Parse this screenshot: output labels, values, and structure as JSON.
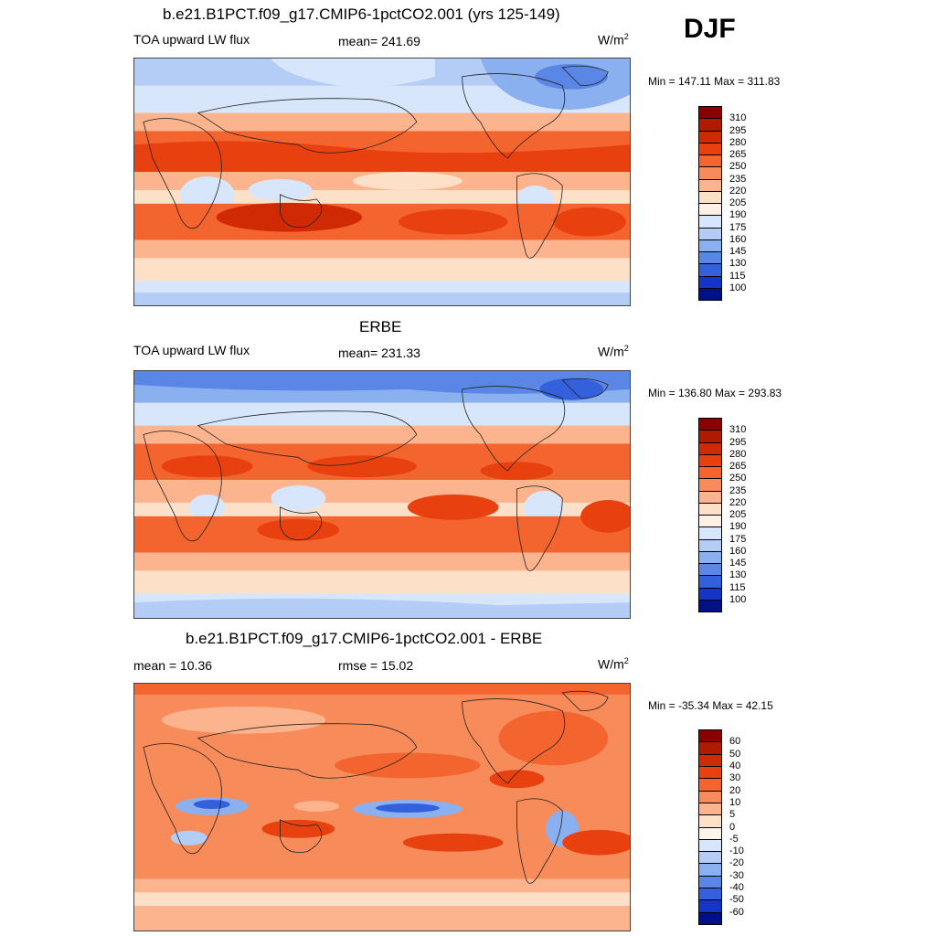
{
  "season": "DJF",
  "panels": [
    {
      "title": "b.e21.B1PCT.f09_g17.CMIP6-1pctCO2.001 (yrs 125-149)",
      "left": "TOA upward LW flux",
      "center": "mean= 241.69",
      "units": "W/m",
      "units_sup": "2",
      "minmax": "Min = 147.11 Max = 311.83",
      "colorbar": {
        "labels": [
          "310",
          "295",
          "280",
          "265",
          "250",
          "235",
          "220",
          "205",
          "190",
          "175",
          "160",
          "145",
          "130",
          "115",
          "100"
        ],
        "colors": [
          "#8b0000",
          "#b01a00",
          "#d02a05",
          "#e8400e",
          "#f4642e",
          "#f88b5a",
          "#fcb48e",
          "#fde0c8",
          "#fdf0e4",
          "#d8e6fb",
          "#b3cdf6",
          "#8bb0ef",
          "#5a87e6",
          "#3560dc",
          "#1534c8",
          "#00108a"
        ]
      },
      "field_summary": {
        "min": 147.11,
        "max": 311.83,
        "mean": 241.69
      }
    },
    {
      "title": "ERBE",
      "left": "TOA upward LW flux",
      "center": "mean= 231.33",
      "units": "W/m",
      "units_sup": "2",
      "minmax": "Min = 136.80 Max = 293.83",
      "colorbar": {
        "labels": [
          "310",
          "295",
          "280",
          "265",
          "250",
          "235",
          "220",
          "205",
          "190",
          "175",
          "160",
          "145",
          "130",
          "115",
          "100"
        ],
        "colors": [
          "#8b0000",
          "#b01a00",
          "#d02a05",
          "#e8400e",
          "#f4642e",
          "#f88b5a",
          "#fcb48e",
          "#fde0c8",
          "#fdf0e4",
          "#d8e6fb",
          "#b3cdf6",
          "#8bb0ef",
          "#5a87e6",
          "#3560dc",
          "#1534c8",
          "#00108a"
        ]
      },
      "field_summary": {
        "min": 136.8,
        "max": 293.83,
        "mean": 231.33
      }
    },
    {
      "title": "b.e21.B1PCT.f09_g17.CMIP6-1pctCO2.001 - ERBE",
      "left": "mean =  10.36",
      "center": "rmse =  15.02",
      "units": "W/m",
      "units_sup": "2",
      "minmax": "Min = -35.34 Max =  42.15",
      "colorbar": {
        "labels": [
          "60",
          "50",
          "40",
          "30",
          "20",
          "10",
          "5",
          "0",
          "-5",
          "-10",
          "-20",
          "-30",
          "-40",
          "-50",
          "-60"
        ],
        "colors": [
          "#8b0000",
          "#b01a00",
          "#d02a05",
          "#e8400e",
          "#f4642e",
          "#f88b5a",
          "#fcb48e",
          "#fde0c8",
          "#fdf4ec",
          "#d8e6fb",
          "#b3cdf6",
          "#8bb0ef",
          "#5a87e6",
          "#3560dc",
          "#1534c8",
          "#00108a"
        ]
      },
      "field_summary": {
        "min": -35.34,
        "max": 42.15,
        "mean": 10.36,
        "rmse": 15.02
      }
    }
  ]
}
